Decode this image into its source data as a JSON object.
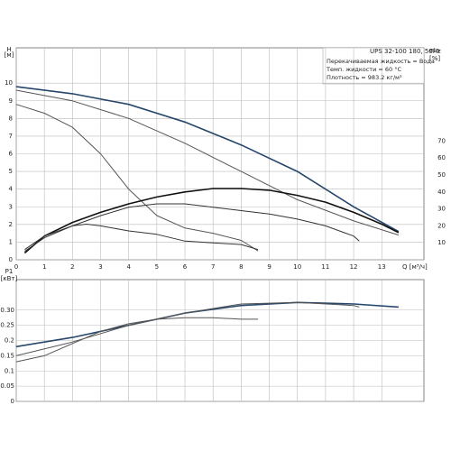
{
  "chart_data": [
    {
      "type": "line",
      "title": "UPS 32-100  180, 50Hz",
      "annotations": [
        "Перекачиваемая жидкость = Вода",
        "Темп. жидкости = 60 °C",
        "Плотность = 983.2 кг/м³"
      ],
      "y_label": "H",
      "y_unit": "[м]",
      "y2_label": "eta",
      "y2_unit": "[%]",
      "x_label": "Q [м³/ч]",
      "xlim": [
        0,
        14.5
      ],
      "xticks": [
        0,
        1,
        2,
        3,
        4,
        5,
        6,
        7,
        8,
        9,
        10,
        11,
        12,
        13
      ],
      "ylim": [
        0,
        12
      ],
      "yticks": [
        0,
        1,
        2,
        3,
        4,
        5,
        6,
        7,
        8,
        9,
        10
      ],
      "y2lim": [
        0,
        125
      ],
      "y2ticks": [
        10,
        20,
        30,
        40,
        50,
        60,
        70
      ],
      "grid": true,
      "series": [
        {
          "color": "#26466b",
          "width": 1.6,
          "x": [
            0,
            2,
            4,
            6,
            8,
            10,
            12,
            13.6
          ],
          "values": [
            9.8,
            9.4,
            8.8,
            7.8,
            6.5,
            5.0,
            3.0,
            1.6
          ]
        },
        {
          "color": "#555555",
          "width": 1,
          "x": [
            0,
            2,
            4,
            6,
            8,
            10,
            12,
            13.6
          ],
          "values": [
            9.6,
            9.0,
            8.0,
            6.6,
            5.0,
            3.4,
            2.2,
            1.4
          ]
        },
        {
          "color": "#555555",
          "width": 1,
          "x": [
            0,
            1,
            2,
            3,
            4,
            5,
            6,
            7,
            8,
            8.6
          ],
          "values": [
            8.8,
            8.3,
            7.5,
            6.0,
            4.0,
            2.5,
            1.8,
            1.5,
            1.1,
            0.5
          ]
        },
        {
          "color": "#111111",
          "width": 1.6,
          "axis": "y2",
          "x": [
            0.3,
            1,
            2,
            3,
            4,
            5,
            6,
            7,
            8,
            9,
            10,
            11,
            12,
            13,
            13.6
          ],
          "values": [
            4,
            14,
            22,
            28,
            33,
            37,
            40,
            42,
            42,
            41,
            38,
            34,
            28,
            21,
            16
          ]
        },
        {
          "color": "#333333",
          "width": 1,
          "axis": "y2",
          "x": [
            0.3,
            1,
            2,
            3,
            4,
            5,
            6,
            7,
            8,
            9,
            10,
            11,
            12,
            12.2
          ],
          "values": [
            5,
            13,
            20,
            26,
            31,
            33,
            33,
            31,
            29,
            27,
            24,
            20,
            14,
            11
          ]
        },
        {
          "color": "#333333",
          "width": 1,
          "axis": "y2",
          "x": [
            0.3,
            1,
            2,
            2.5,
            3,
            4,
            5,
            6,
            7,
            8,
            8.6
          ],
          "values": [
            6,
            14,
            20,
            21,
            20,
            17,
            15,
            11,
            10,
            9,
            6
          ]
        }
      ]
    },
    {
      "type": "line",
      "y_label": "P1",
      "y_unit": "[кВт]",
      "xlim": [
        0,
        14.5
      ],
      "xticks": [
        0,
        1,
        2,
        3,
        4,
        5,
        6,
        7,
        8,
        9,
        10,
        11,
        12,
        13
      ],
      "ylim": [
        0,
        0.4
      ],
      "yticks": [
        0,
        0.05,
        0.1,
        0.15,
        0.2,
        0.25,
        {
          "value": 0.3,
          "label": "0.30"
        }
      ],
      "grid": true,
      "series": [
        {
          "color": "#26466b",
          "width": 1.6,
          "x": [
            0,
            2,
            4,
            6,
            8,
            10,
            12,
            13.6
          ],
          "values": [
            0.18,
            0.21,
            0.25,
            0.29,
            0.315,
            0.325,
            0.32,
            0.31
          ]
        },
        {
          "color": "#555555",
          "width": 1,
          "x": [
            0,
            2,
            4,
            6,
            8,
            10,
            12,
            12.2
          ],
          "values": [
            0.15,
            0.195,
            0.25,
            0.29,
            0.32,
            0.325,
            0.315,
            0.31
          ]
        },
        {
          "color": "#555555",
          "width": 1,
          "x": [
            0,
            1,
            2,
            3,
            4,
            5,
            6,
            7,
            8,
            8.6
          ],
          "values": [
            0.13,
            0.15,
            0.19,
            0.23,
            0.255,
            0.27,
            0.275,
            0.275,
            0.27,
            0.27
          ]
        }
      ]
    }
  ]
}
